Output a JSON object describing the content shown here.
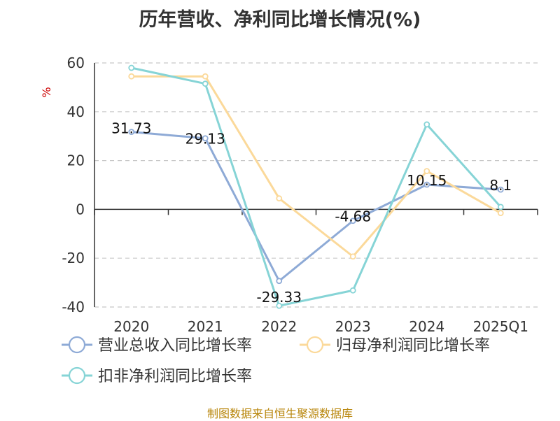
{
  "chart_data": {
    "type": "line",
    "title": "历年营收、净利同比增长情况(%)",
    "ylabel": "%",
    "categories": [
      "2020",
      "2021",
      "2022",
      "2023",
      "2024",
      "2025Q1"
    ],
    "ylim": [
      -40,
      60
    ],
    "yticks": [
      60,
      40,
      20,
      0,
      -20,
      -40
    ],
    "grid": true,
    "legend_position": "bottom",
    "series": [
      {
        "name": "营业总收入同比增长率",
        "color": "#8eaad6",
        "values": [
          31.73,
          29.13,
          -29.33,
          -4.68,
          10.15,
          8.1
        ],
        "labels": [
          "31.73",
          "29.13",
          "-29.33",
          "-4.68",
          "10.15",
          "8.1"
        ]
      },
      {
        "name": "归母净利润同比增长率",
        "color": "#fbd99a",
        "values": [
          54.5,
          54.5,
          4.5,
          -19.3,
          15.7,
          -1.5
        ]
      },
      {
        "name": "扣非净利润同比增长率",
        "color": "#86d4d6",
        "values": [
          58,
          51.5,
          -39.5,
          -33.2,
          34.8,
          1
        ]
      }
    ]
  },
  "source": "制图数据来自恒生聚源数据库"
}
